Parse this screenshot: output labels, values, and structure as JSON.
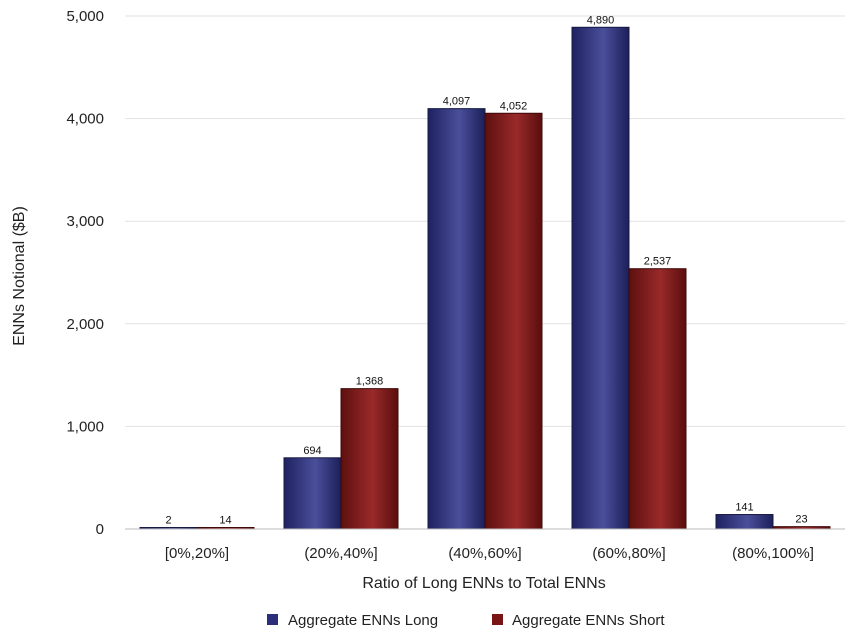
{
  "chart_data": {
    "type": "bar",
    "categories": [
      "[0%,20%]",
      "(20%,40%]",
      "(40%,60%]",
      "(60%,80%]",
      "(80%,100%]"
    ],
    "series": [
      {
        "name": "Aggregate ENNs Long",
        "values": [
          2,
          694,
          4097,
          4890,
          141
        ],
        "labels": [
          "2",
          "694",
          "4,097",
          "4,890",
          "141"
        ],
        "color": "#2b2f7a"
      },
      {
        "name": "Aggregate ENNs Short",
        "values": [
          14,
          1368,
          4052,
          2537,
          23
        ],
        "labels": [
          "14",
          "1,368",
          "4,052",
          "2,537",
          "23"
        ],
        "color": "#7a1515"
      }
    ],
    "xlabel": "Ratio of Long ENNs to Total ENNs",
    "ylabel": "ENNs Notional ($B)",
    "ylim": [
      0,
      5000
    ],
    "yticks": [
      0,
      1000,
      2000,
      3000,
      4000,
      5000
    ],
    "ytick_labels": [
      "0",
      "1,000",
      "2,000",
      "3,000",
      "4,000",
      "5,000"
    ],
    "grid": true,
    "legend_position": "bottom"
  }
}
